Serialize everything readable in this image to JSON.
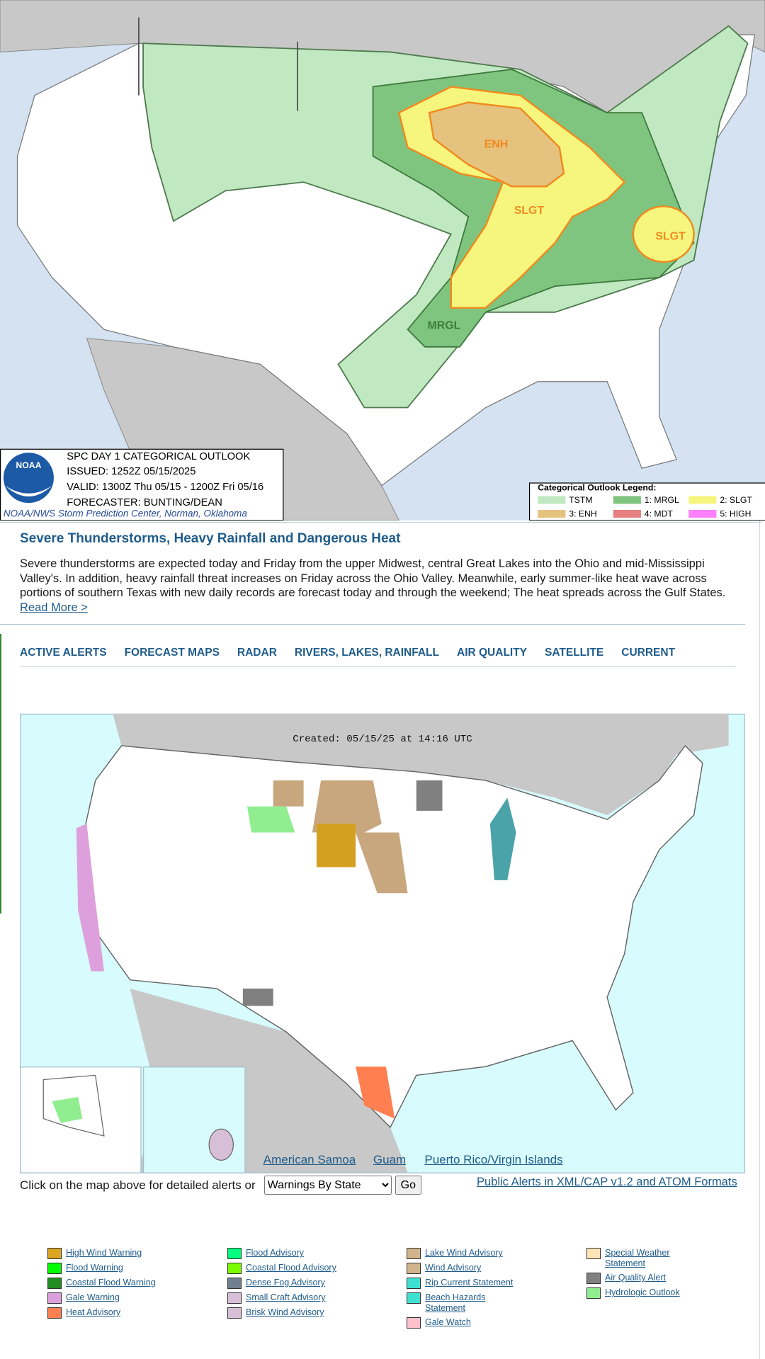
{
  "outlook_map": {
    "region_labels": [
      "ENH",
      "SLGT",
      "SLGT",
      "MRGL"
    ],
    "info": {
      "logo": "NOAA",
      "title": "SPC DAY 1 CATEGORICAL OUTLOOK",
      "issued": "ISSUED: 1252Z 05/15/2025",
      "valid": "VALID: 1300Z Thu 05/15 - 1200Z Fri 05/16",
      "forecaster": "FORECASTER: BUNTING/DEAN",
      "credit": "NOAA/NWS Storm Prediction Center, Norman, Oklahoma"
    },
    "legend": {
      "title": "Categorical Outlook Legend:",
      "items": [
        {
          "label": "TSTM",
          "color": "#c1e9c1"
        },
        {
          "label": "1: MRGL",
          "color": "#7fc57f"
        },
        {
          "label": "2: SLGT",
          "color": "#f6f67f"
        },
        {
          "label": "3: ENH",
          "color": "#e6c27f"
        },
        {
          "label": "4: MDT",
          "color": "#e67f7f"
        },
        {
          "label": "5: HIGH",
          "color": "#ff80ff"
        }
      ]
    }
  },
  "headline": {
    "title": "Severe Thunderstorms, Heavy Rainfall and Dangerous Heat",
    "text": "Severe thunderstorms are expected today and Friday from the upper Midwest, central Great Lakes into the Ohio and mid-Mississippi Valley's. In addition, heavy rainfall threat increases on Friday across the Ohio Valley. Meanwhile, early summer-like heat wave across portions of southern Texas with new daily records are forecast today and through the weekend; The heat spreads across the Gulf States.",
    "link": "Read More >"
  },
  "nav": [
    "ACTIVE ALERTS",
    "FORECAST MAPS",
    "RADAR",
    "RIVERS, LAKES, RAINFALL",
    "AIR QUALITY",
    "SATELLITE",
    "CURRENT"
  ],
  "alerts_map": {
    "created": "Created: 05/15/25 at 14:16 UTC",
    "links": [
      "American Samoa",
      "Guam",
      "Puerto Rico/Virgin Islands"
    ]
  },
  "controls": {
    "prompt": "Click on the map above for detailed alerts or",
    "select": "Warnings By State",
    "button": "Go",
    "xml_link": "Public Alerts in XML/CAP v1.2 and ATOM Formats"
  },
  "alert_legend": [
    [
      {
        "label": "High Wind Warning",
        "color": "#daa520"
      },
      {
        "label": "Flood Warning",
        "color": "#00ff00"
      },
      {
        "label": "Coastal Flood Warning",
        "color": "#228b22"
      },
      {
        "label": "Gale Warning",
        "color": "#dda0dd"
      },
      {
        "label": "Heat Advisory",
        "color": "#ff7f50"
      }
    ],
    [
      {
        "label": "Flood Advisory",
        "color": "#00ff7f"
      },
      {
        "label": "Coastal Flood Advisory",
        "color": "#7cfc00"
      },
      {
        "label": "Dense Fog Advisory",
        "color": "#708090"
      },
      {
        "label": "Small Craft Advisory",
        "color": "#d8bfd8"
      },
      {
        "label": "Brisk Wind Advisory",
        "color": "#d8bfd8"
      }
    ],
    [
      {
        "label": "Lake Wind Advisory",
        "color": "#d2b48c"
      },
      {
        "label": "Wind Advisory",
        "color": "#d2b48c"
      },
      {
        "label": "Rip Current Statement",
        "color": "#40e0d0"
      },
      {
        "label": "Beach Hazards Statement",
        "color": "#40e0d0"
      },
      {
        "label": "Gale Watch",
        "color": "#ffc0cb"
      }
    ],
    [
      {
        "label": "Special Weather Statement",
        "color": "#ffe4b5"
      },
      {
        "label": "Air Quality Alert",
        "color": "#808080"
      },
      {
        "label": "Hydrologic Outlook",
        "color": "#90ee90"
      }
    ]
  ]
}
